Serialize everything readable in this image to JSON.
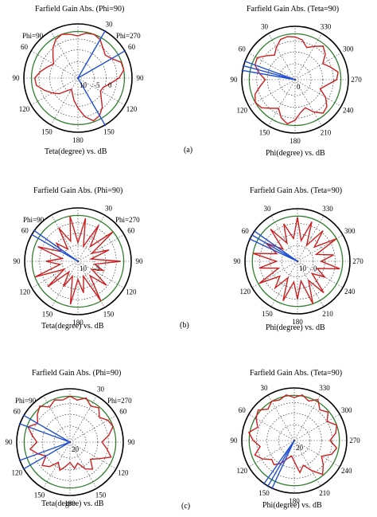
{
  "row_labels": [
    "(a)",
    "(b)",
    "(c)"
  ],
  "colors": {
    "pattern": "#cc1f1f",
    "beam": "#1f4fd0",
    "outer_ring": "#000000",
    "green_ring": "#2f7f2f",
    "grid": "#333333"
  },
  "chart_data": [
    {
      "type": "polar-line",
      "title": "Farfield Gain Abs. (Phi=90)",
      "xlabel": "Teta(degree) vs. dB",
      "angle_labels": [
        {
          "text": "30",
          "angle": 30
        },
        {
          "text": "60",
          "angle": 60
        },
        {
          "text": "90",
          "angle": 90
        },
        {
          "text": "120",
          "angle": 120
        },
        {
          "text": "150",
          "angle": 150
        },
        {
          "text": "180",
          "angle": 180
        },
        {
          "text": "150",
          "angle": 210
        },
        {
          "text": "120",
          "angle": 240
        },
        {
          "text": "90",
          "angle": 270
        },
        {
          "text": "60",
          "angle": 300
        }
      ],
      "side_labels": [
        "Phi=90",
        "Phi=270"
      ],
      "radial_labels": [
        "10",
        "-5",
        "0"
      ],
      "beam_angles": [
        30,
        60,
        150
      ],
      "pattern": [
        0.78,
        0.84,
        0.86,
        0.82,
        0.72,
        0.66,
        0.72,
        0.85,
        0.86,
        0.76,
        0.6,
        0.5,
        0.48,
        0.56,
        0.7,
        0.8,
        0.84,
        0.72,
        0.55,
        0.42,
        0.3,
        0.24,
        0.3,
        0.45,
        0.55,
        0.66,
        0.78,
        0.8,
        0.7,
        0.6,
        0.52,
        0.6,
        0.72,
        0.82,
        0.86,
        0.82
      ]
    },
    {
      "type": "polar-line",
      "title": "Farfield Gain Abs. (Teta=90)",
      "xlabel": "Phi(degree) vs. dB",
      "angle_labels": [
        {
          "text": "330",
          "angle": 30
        },
        {
          "text": "300",
          "angle": 60
        },
        {
          "text": "270",
          "angle": 90
        },
        {
          "text": "240",
          "angle": 120
        },
        {
          "text": "210",
          "angle": 150
        },
        {
          "text": "180",
          "angle": 180
        },
        {
          "text": "150",
          "angle": 210
        },
        {
          "text": "120",
          "angle": 240
        },
        {
          "text": "90",
          "angle": 270
        },
        {
          "text": "60",
          "angle": 300
        },
        {
          "text": "30",
          "angle": 330
        }
      ],
      "side_labels": [],
      "radial_labels": [
        "0"
      ],
      "beam_angles": [
        280,
        285,
        290
      ],
      "pattern": [
        0.8,
        0.76,
        0.64,
        0.72,
        0.82,
        0.74,
        0.6,
        0.7,
        0.82,
        0.78,
        0.6,
        0.5,
        0.66,
        0.78,
        0.82,
        0.7,
        0.56,
        0.62,
        0.76,
        0.84,
        0.76,
        0.62,
        0.7,
        0.82,
        0.86,
        0.8,
        0.66,
        0.56,
        0.68,
        0.8,
        0.82,
        0.7,
        0.6,
        0.7,
        0.8,
        0.82
      ]
    },
    {
      "type": "polar-line",
      "title": "Farfield Gain Abs. (Phi=90)",
      "xlabel": "Teta(degree) vs. dB",
      "angle_labels": [
        {
          "text": "30",
          "angle": 30
        },
        {
          "text": "60",
          "angle": 60
        },
        {
          "text": "90",
          "angle": 90
        },
        {
          "text": "120",
          "angle": 120
        },
        {
          "text": "150",
          "angle": 150
        },
        {
          "text": "180",
          "angle": 180
        },
        {
          "text": "150",
          "angle": 210
        },
        {
          "text": "120",
          "angle": 240
        },
        {
          "text": "90",
          "angle": 270
        },
        {
          "text": "60",
          "angle": 300
        }
      ],
      "side_labels": [
        "Phi=90",
        "Phi=270"
      ],
      "radial_labels": [
        "10",
        "-5"
      ],
      "beam_angles": [
        300,
        305
      ],
      "pattern": [
        0.35,
        0.82,
        0.3,
        0.78,
        0.36,
        0.86,
        0.3,
        0.62,
        0.25,
        0.8,
        0.32,
        0.5,
        0.3,
        0.7,
        0.35,
        0.86,
        0.3,
        0.6,
        0.34,
        0.82,
        0.3,
        0.55,
        0.26,
        0.74,
        0.3,
        0.86,
        0.34,
        0.6,
        0.3,
        0.8,
        0.36,
        0.52,
        0.3,
        0.72,
        0.4,
        0.86
      ]
    },
    {
      "type": "polar-line",
      "title": "Farfield Gain Abs. (Teta=90)",
      "xlabel": "Phi(degree) vs. dB",
      "angle_labels": [
        {
          "text": "330",
          "angle": 30
        },
        {
          "text": "300",
          "angle": 60
        },
        {
          "text": "270",
          "angle": 90
        },
        {
          "text": "240",
          "angle": 120
        },
        {
          "text": "210",
          "angle": 150
        },
        {
          "text": "180",
          "angle": 180
        },
        {
          "text": "150",
          "angle": 210
        },
        {
          "text": "120",
          "angle": 240
        },
        {
          "text": "90",
          "angle": 270
        },
        {
          "text": "60",
          "angle": 300
        },
        {
          "text": "30",
          "angle": 330
        }
      ],
      "side_labels": [],
      "radial_labels": [
        "10",
        "0"
      ],
      "beam_angles": [
        295,
        300,
        305
      ],
      "pattern": [
        0.84,
        0.4,
        0.8,
        0.35,
        0.76,
        0.42,
        0.86,
        0.38,
        0.7,
        0.45,
        0.82,
        0.4,
        0.6,
        0.36,
        0.78,
        0.42,
        0.86,
        0.38,
        0.72,
        0.4,
        0.8,
        0.36,
        0.66,
        0.44,
        0.84,
        0.38,
        0.74,
        0.4,
        0.86,
        0.42,
        0.7,
        0.36,
        0.8,
        0.4,
        0.76,
        0.44
      ]
    },
    {
      "type": "polar-line",
      "title": "Farfield Gain Abs. (Phi=90)",
      "xlabel": "Teta(degree) vs. dB",
      "angle_labels": [
        {
          "text": "30",
          "angle": 30
        },
        {
          "text": "60",
          "angle": 60
        },
        {
          "text": "90",
          "angle": 90
        },
        {
          "text": "120",
          "angle": 120
        },
        {
          "text": "150",
          "angle": 150
        },
        {
          "text": "180",
          "angle": 180
        },
        {
          "text": "150",
          "angle": 210
        },
        {
          "text": "120",
          "angle": 240
        },
        {
          "text": "90",
          "angle": 270
        },
        {
          "text": "60",
          "angle": 300
        }
      ],
      "side_labels": [
        "Phi=90",
        "Phi=270"
      ],
      "radial_labels": [
        "20"
      ],
      "beam_angles": [
        240,
        250,
        290,
        300
      ],
      "pattern": [
        0.86,
        0.8,
        0.88,
        0.78,
        0.84,
        0.72,
        0.82,
        0.86,
        0.74,
        0.6,
        0.7,
        0.82,
        0.62,
        0.5,
        0.66,
        0.58,
        0.42,
        0.5,
        0.38,
        0.46,
        0.56,
        0.44,
        0.6,
        0.68,
        0.52,
        0.64,
        0.76,
        0.62,
        0.72,
        0.84,
        0.7,
        0.8,
        0.88,
        0.76,
        0.84,
        0.8
      ]
    },
    {
      "type": "polar-line",
      "title": "Farfield Gain Abs. (Teta=90)",
      "xlabel": "Phi(degree) vs. dB",
      "angle_labels": [
        {
          "text": "330",
          "angle": 30
        },
        {
          "text": "300",
          "angle": 60
        },
        {
          "text": "270",
          "angle": 90
        },
        {
          "text": "240",
          "angle": 120
        },
        {
          "text": "210",
          "angle": 150
        },
        {
          "text": "180",
          "angle": 180
        },
        {
          "text": "150",
          "angle": 210
        },
        {
          "text": "120",
          "angle": 240
        },
        {
          "text": "90",
          "angle": 270
        },
        {
          "text": "60",
          "angle": 300
        },
        {
          "text": "30",
          "angle": 330
        }
      ],
      "side_labels": [],
      "radial_labels": [
        "20"
      ],
      "beam_angles": [
        205,
        210,
        215
      ],
      "pattern": [
        0.82,
        0.88,
        0.8,
        0.9,
        0.76,
        0.84,
        0.72,
        0.86,
        0.8,
        0.68,
        0.82,
        0.76,
        0.6,
        0.72,
        0.84,
        0.66,
        0.5,
        0.62,
        0.4,
        0.3,
        0.36,
        0.5,
        0.6,
        0.56,
        0.7,
        0.8,
        0.66,
        0.78,
        0.88,
        0.74,
        0.84,
        0.9,
        0.78,
        0.86,
        0.82,
        0.88
      ]
    }
  ]
}
